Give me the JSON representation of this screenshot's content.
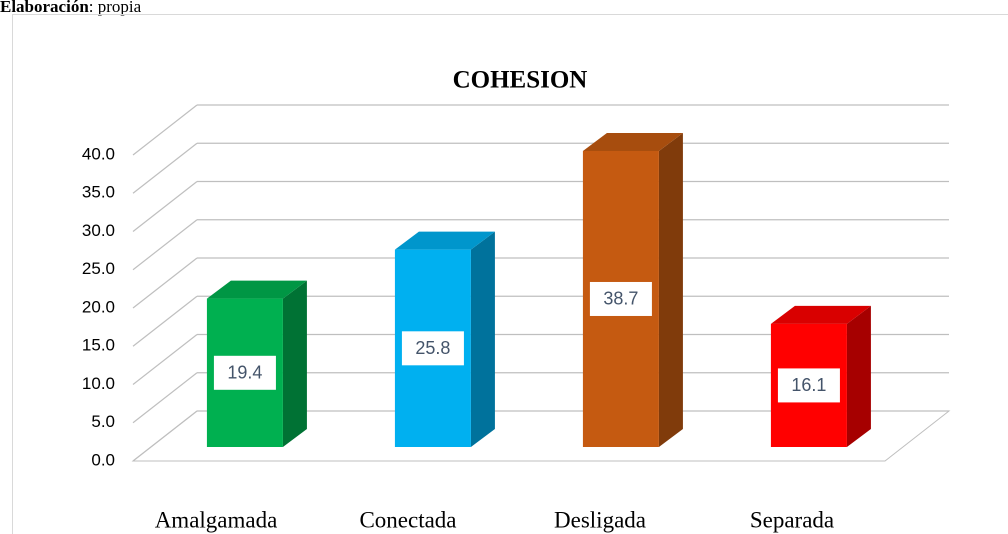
{
  "header": {
    "label": "Elaboración",
    "text": ": propia"
  },
  "chart_data": {
    "type": "bar3d",
    "title": "COHESION",
    "categories": [
      "Amalgamada",
      "Conectada",
      "Desligada",
      "Separada"
    ],
    "values": [
      19.4,
      25.8,
      38.7,
      16.1
    ],
    "colors": [
      "#00b050",
      "#00b0f0",
      "#c55a11",
      "#ff0000"
    ],
    "ylim": [
      0,
      40
    ],
    "yticks": [
      {
        "value": 0,
        "label": "0.0"
      },
      {
        "value": 5,
        "label": "5.0"
      },
      {
        "value": 10,
        "label": "10.0"
      },
      {
        "value": 15,
        "label": "15.0"
      },
      {
        "value": 20,
        "label": "20.0"
      },
      {
        "value": 25,
        "label": "25.0"
      },
      {
        "value": 30,
        "label": "30.0"
      },
      {
        "value": 35,
        "label": "35.0"
      },
      {
        "value": 40,
        "label": "40.0"
      }
    ],
    "grid": true
  }
}
